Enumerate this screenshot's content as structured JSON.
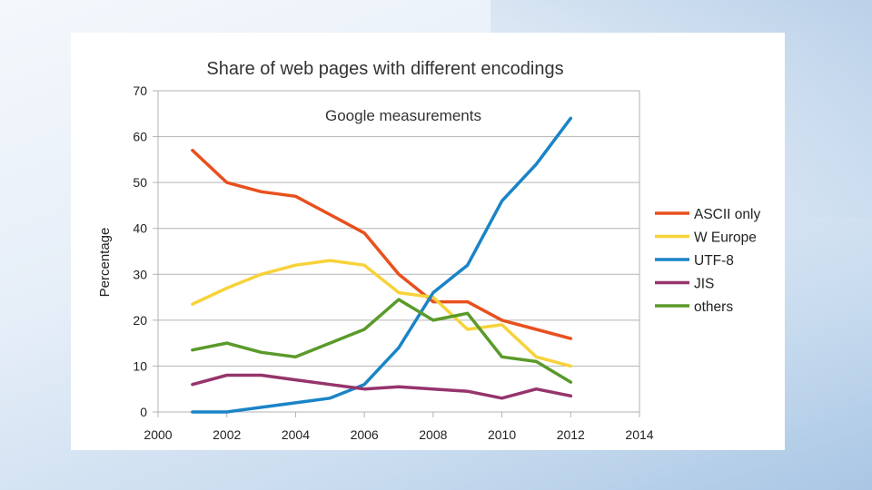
{
  "chart_data": {
    "type": "line",
    "title": "Share of web pages with different encodings",
    "annotation": "Google measurements",
    "xlabel": "",
    "ylabel": "Percentage",
    "xlim": [
      2000,
      2014
    ],
    "ylim": [
      0,
      70
    ],
    "xticks": [
      2000,
      2002,
      2004,
      2006,
      2008,
      2010,
      2012,
      2014
    ],
    "yticks": [
      0,
      10,
      20,
      30,
      40,
      50,
      60,
      70
    ],
    "grid": true,
    "legend_position": "right",
    "x": [
      2001,
      2002,
      2003,
      2004,
      2005,
      2006,
      2007,
      2008,
      2009,
      2010,
      2011,
      2012
    ],
    "series": [
      {
        "name": "ASCII only",
        "color": "#e8501e",
        "values": [
          57,
          50,
          48,
          47,
          43,
          39,
          30,
          24,
          24,
          20,
          18,
          16
        ]
      },
      {
        "name": "W Europe",
        "color": "#f7d23a",
        "values": [
          23.5,
          27,
          30,
          32,
          33,
          32,
          26,
          25,
          18,
          19,
          12,
          10
        ]
      },
      {
        "name": "UTF-8",
        "color": "#1a84c7",
        "values": [
          0,
          0,
          1,
          2,
          3,
          6,
          14,
          26,
          32,
          46,
          54,
          64
        ]
      },
      {
        "name": "JIS",
        "color": "#96346c",
        "values": [
          6,
          8,
          8,
          7,
          6,
          5,
          5.5,
          5,
          4.5,
          3,
          5,
          3.5
        ]
      },
      {
        "name": "others",
        "color": "#5a9a2a",
        "values": [
          13.5,
          15,
          13,
          12,
          15,
          18,
          24.5,
          20,
          21.5,
          12,
          11,
          6.5
        ]
      }
    ]
  }
}
